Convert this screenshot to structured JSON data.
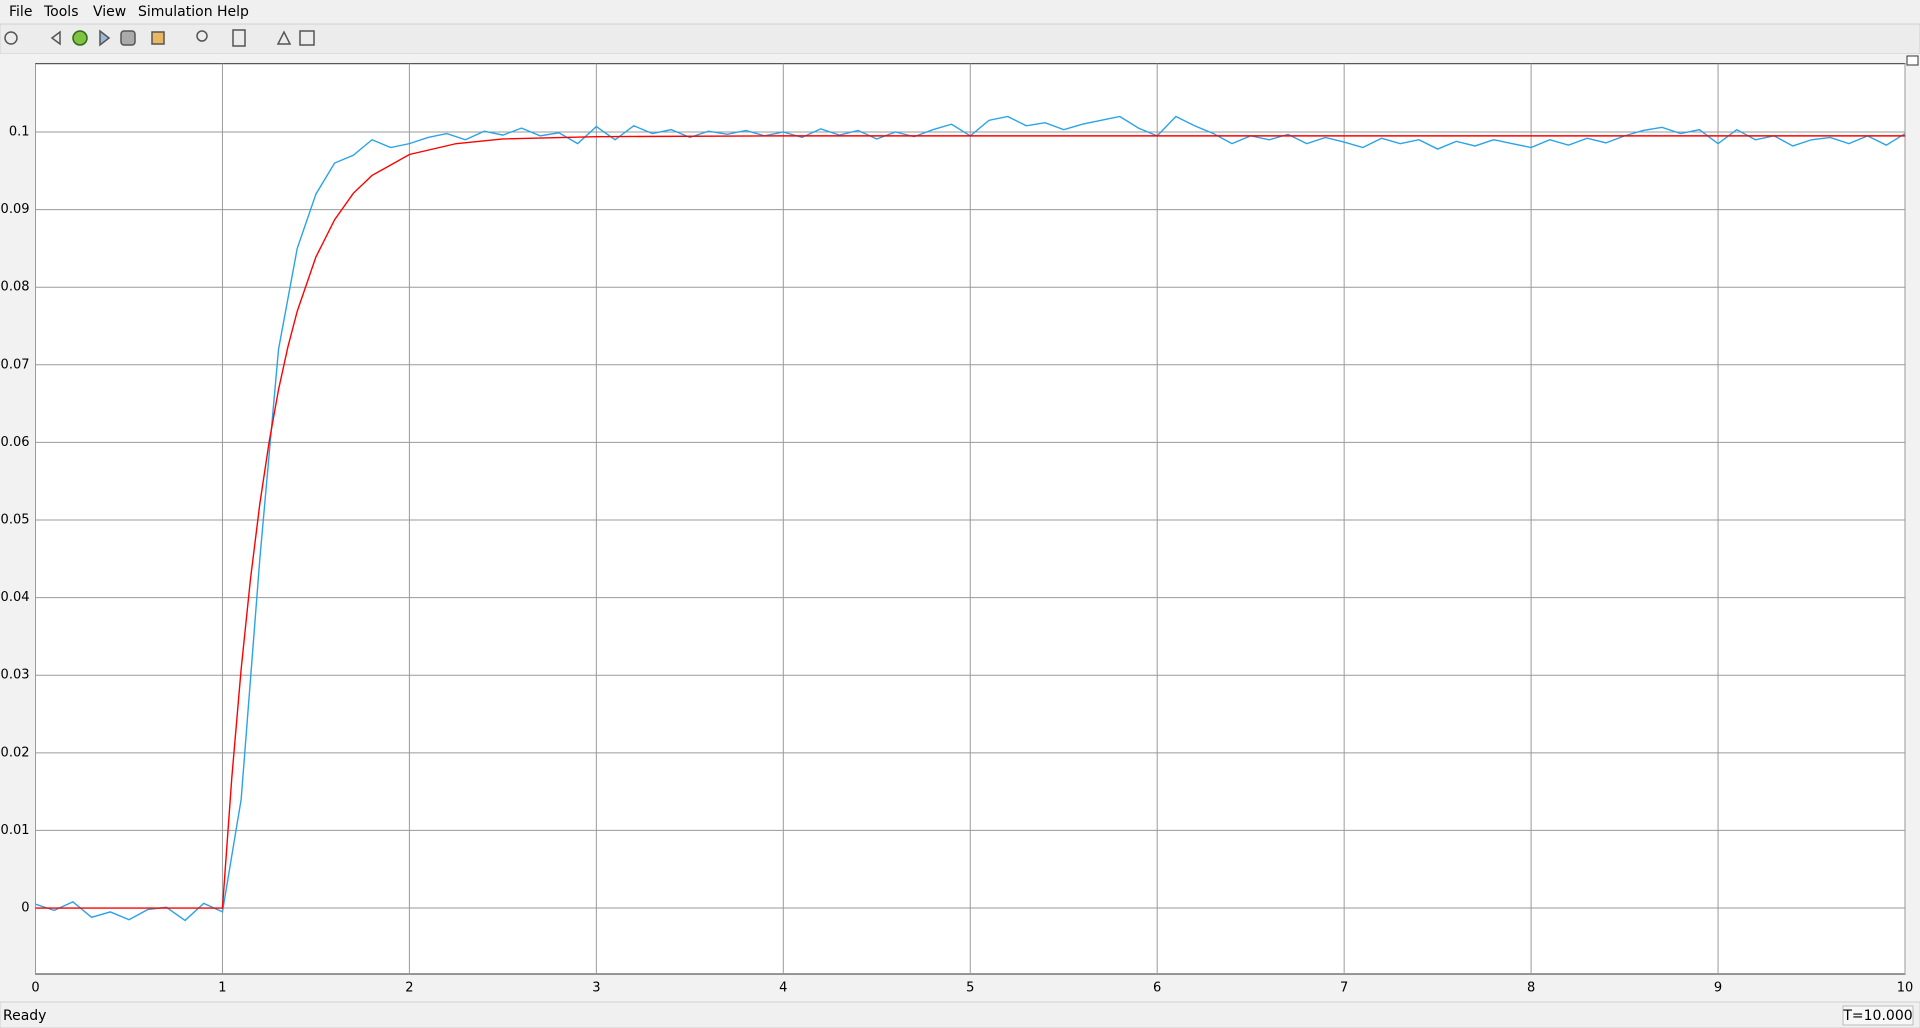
{
  "menu": [
    "File",
    "Tools",
    "View",
    "Simulation",
    "Help"
  ],
  "status": {
    "text": "Ready",
    "time": "T=10.000"
  },
  "chart_data": {
    "type": "line",
    "xlim": [
      0,
      10
    ],
    "ylim": [
      -0.0085,
      0.1088
    ],
    "xticks": [
      0,
      1,
      2,
      3,
      4,
      5,
      6,
      7,
      8,
      9,
      10
    ],
    "yticks": [
      0,
      0.01,
      0.02,
      0.03,
      0.04,
      0.05,
      0.06,
      0.07,
      0.08,
      0.09,
      0.1
    ],
    "grid": true,
    "series": [
      {
        "color": "#2aa3e8",
        "x": [
          0,
          0.1,
          0.2,
          0.3,
          0.4,
          0.5,
          0.6,
          0.7,
          0.8,
          0.9,
          1,
          1.1,
          1.2,
          1.3,
          1.4,
          1.5,
          1.6,
          1.7,
          1.8,
          1.9,
          2,
          2.1,
          2.2,
          2.3,
          2.4,
          2.5,
          2.6,
          2.7,
          2.8,
          2.9,
          3,
          3.1,
          3.2,
          3.3,
          3.4,
          3.5,
          3.6,
          3.7,
          3.8,
          3.9,
          4,
          4.1,
          4.2,
          4.3,
          4.4,
          4.5,
          4.6,
          4.7,
          4.8,
          4.9,
          5,
          5.1,
          5.2,
          5.3,
          5.4,
          5.5,
          5.6,
          5.7,
          5.8,
          5.9,
          6,
          6.1,
          6.2,
          6.3,
          6.4,
          6.5,
          6.6,
          6.7,
          6.8,
          6.9,
          7,
          7.1,
          7.2,
          7.3,
          7.4,
          7.5,
          7.6,
          7.7,
          7.8,
          7.9,
          8,
          8.1,
          8.2,
          8.3,
          8.4,
          8.5,
          8.6,
          8.7,
          8.8,
          8.9,
          9,
          9.1,
          9.2,
          9.3,
          9.4,
          9.5,
          9.6,
          9.7,
          9.8,
          9.9,
          10
        ],
        "values": [
          0.0005,
          -0.0003,
          0.0008,
          -0.0012,
          -0.0005,
          -0.0015,
          -0.0002,
          0.0001,
          -0.0016,
          0.0006,
          -0.0005,
          0.014,
          0.045,
          0.072,
          0.085,
          0.092,
          0.096,
          0.097,
          0.099,
          0.098,
          0.0985,
          0.0993,
          0.0998,
          0.099,
          0.1001,
          0.0996,
          0.1005,
          0.0995,
          0.0999,
          0.0985,
          0.1007,
          0.099,
          0.1008,
          0.0998,
          0.1003,
          0.0993,
          0.1001,
          0.0997,
          0.1002,
          0.0995,
          0.1,
          0.0993,
          0.1004,
          0.0996,
          0.1002,
          0.0991,
          0.1,
          0.0994,
          0.1003,
          0.101,
          0.0995,
          0.1015,
          0.102,
          0.1008,
          0.1012,
          0.1003,
          0.101,
          0.1015,
          0.102,
          0.1005,
          0.0995,
          0.102,
          0.1008,
          0.0998,
          0.0985,
          0.0995,
          0.099,
          0.0997,
          0.0985,
          0.0993,
          0.0987,
          0.098,
          0.0992,
          0.0985,
          0.099,
          0.0978,
          0.0988,
          0.0982,
          0.099,
          0.0985,
          0.098,
          0.099,
          0.0983,
          0.0992,
          0.0986,
          0.0995,
          0.1002,
          0.1006,
          0.0998,
          0.1003,
          0.0985,
          0.1003,
          0.099,
          0.0995,
          0.0982,
          0.099,
          0.0993,
          0.0985,
          0.0995,
          0.0983,
          0.0998
        ]
      },
      {
        "color": "#ff0000",
        "x": [
          0,
          1,
          1.05,
          1.1,
          1.15,
          1.2,
          1.25,
          1.3,
          1.35,
          1.4,
          1.5,
          1.6,
          1.7,
          1.8,
          2,
          2.25,
          2.5,
          3,
          4,
          10
        ],
        "values": [
          0,
          0,
          0.0168,
          0.0308,
          0.0424,
          0.0521,
          0.0601,
          0.0668,
          0.0723,
          0.0769,
          0.0839,
          0.0887,
          0.0921,
          0.0944,
          0.0971,
          0.0985,
          0.0991,
          0.0994,
          0.0995,
          0.0995
        ]
      }
    ]
  }
}
